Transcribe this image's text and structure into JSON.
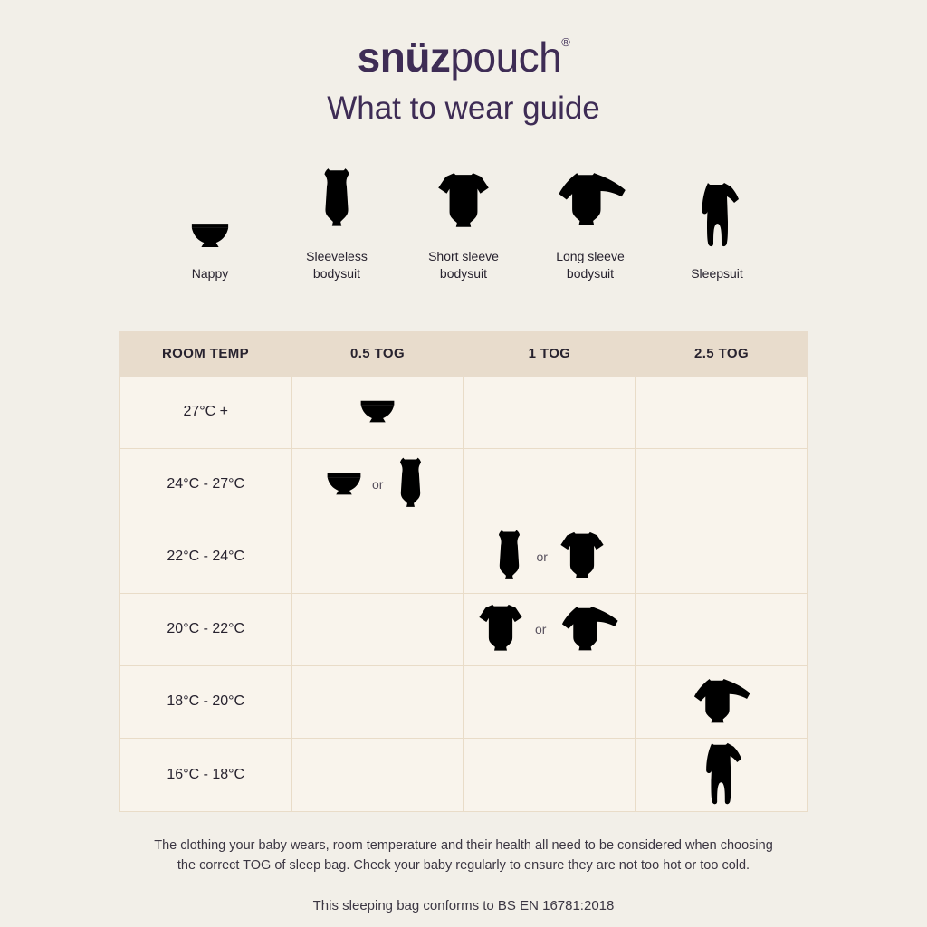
{
  "brand": {
    "logo_bold": "snüz",
    "logo_regular": "pouch",
    "registered_mark": "®"
  },
  "title": "What to wear guide",
  "legend": {
    "items": [
      {
        "icon": "nappy",
        "label": "Nappy"
      },
      {
        "icon": "sleeveless-bodysuit",
        "label": "Sleeveless\nbodysuit"
      },
      {
        "icon": "short-sleeve-bodysuit",
        "label": "Short sleeve\nbodysuit"
      },
      {
        "icon": "long-sleeve-bodysuit",
        "label": "Long sleeve\nbodysuit"
      },
      {
        "icon": "sleepsuit",
        "label": "Sleepsuit"
      }
    ]
  },
  "table": {
    "columns": [
      "ROOM TEMP",
      "0.5 TOG",
      "1 TOG",
      "2.5 TOG"
    ],
    "or_label": "or",
    "rows": [
      {
        "temp": "27°C +",
        "tog": "0.5 TOG",
        "tog_column": 1,
        "icons": [
          "nappy"
        ]
      },
      {
        "temp": "24°C - 27°C",
        "tog": "0.5 TOG",
        "tog_column": 1,
        "icons": [
          "nappy",
          "sleeveless-bodysuit"
        ]
      },
      {
        "temp": "22°C - 24°C",
        "tog": "1 TOG",
        "tog_column": 2,
        "icons": [
          "sleeveless-bodysuit",
          "short-sleeve-bodysuit"
        ]
      },
      {
        "temp": "20°C - 22°C",
        "tog": "1 TOG",
        "tog_column": 2,
        "icons": [
          "short-sleeve-bodysuit",
          "long-sleeve-bodysuit"
        ]
      },
      {
        "temp": "18°C - 20°C",
        "tog": "2.5 TOG",
        "tog_column": 3,
        "icons": [
          "long-sleeve-bodysuit"
        ]
      },
      {
        "temp": "16°C - 18°C",
        "tog": "2.5 TOG",
        "tog_column": 3,
        "icons": [
          "sleepsuit"
        ]
      }
    ]
  },
  "footer": {
    "note": "The clothing your baby wears, room temperature and their health all need to be considered when choosing the correct TOG of sleep bag. Check your baby regularly to ensure they are not too hot or too cold.",
    "conformance": "This sleeping bag conforms to BS EN 16781:2018"
  },
  "colors": {
    "page_background": "#f2efe8",
    "table_cell_background": "#f9f4ec",
    "table_header_background": "#e8dccc",
    "table_border": "#e9dcc8",
    "brand_purple": "#3e2c55",
    "icon_stroke": "#3f2d57",
    "text_dark": "#27222e",
    "text_muted": "#59525f"
  }
}
